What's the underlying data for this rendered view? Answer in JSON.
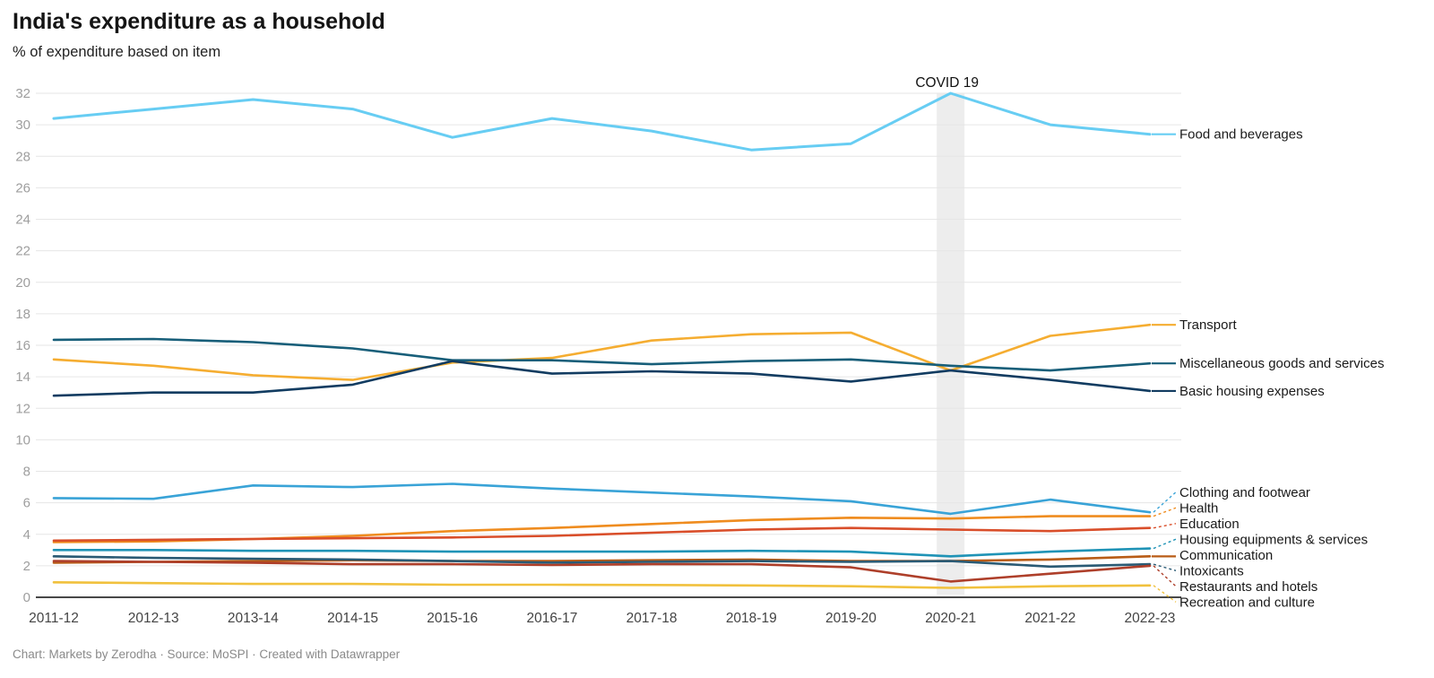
{
  "header": {
    "title": "India's expenditure as a household",
    "subtitle": "% of expenditure based on item"
  },
  "footer": {
    "text": "Chart: Markets by Zerodha · Source: MoSPI · Created with Datawrapper"
  },
  "chart_data": {
    "type": "line",
    "title": "India's expenditure as a household",
    "subtitle": "% of expenditure based on item",
    "x_categories": [
      "2011-12",
      "2012-13",
      "2013-14",
      "2014-15",
      "2015-16",
      "2016-17",
      "2017-18",
      "2018-19",
      "2019-20",
      "2020-21",
      "2021-22",
      "2022-23"
    ],
    "ylim": [
      0,
      32
    ],
    "ytick_step": 2,
    "grid": true,
    "legend_position": "right-direct-labels",
    "annotations": {
      "covid": {
        "label": "COVID 19",
        "x_category": "2020-21"
      }
    },
    "colors": {
      "axis_tick": "#9e9e9e",
      "x_tick": "#444444",
      "gridline": "#e6e6e6",
      "baseline": "#2e2e2e",
      "band": "#ededed",
      "label_text": "#1a1a1a"
    },
    "series": [
      {
        "id": "food",
        "name": "Food and beverages",
        "color": "#67cdf3",
        "values": [
          30.4,
          31.0,
          31.6,
          31.0,
          29.2,
          30.4,
          29.6,
          28.4,
          28.8,
          32.0,
          30.0,
          29.4
        ]
      },
      {
        "id": "transport",
        "name": "Transport",
        "color": "#f5ad31",
        "values": [
          15.1,
          14.7,
          14.1,
          13.8,
          14.9,
          15.2,
          16.3,
          16.7,
          16.8,
          14.4,
          16.6,
          17.3
        ]
      },
      {
        "id": "misc",
        "name": "Miscellaneous goods and services",
        "color": "#175e79",
        "values": [
          16.35,
          16.4,
          16.2,
          15.8,
          15.05,
          15.05,
          14.8,
          15.0,
          15.1,
          14.7,
          14.4,
          14.85
        ]
      },
      {
        "id": "housing",
        "name": "Basic housing expenses",
        "color": "#123c61",
        "values": [
          12.8,
          13.0,
          13.0,
          13.5,
          15.0,
          14.2,
          14.35,
          14.2,
          13.7,
          14.4,
          13.8,
          13.1
        ]
      },
      {
        "id": "clothing",
        "name": "Clothing and footwear",
        "color": "#39a3d7",
        "values": [
          6.3,
          6.25,
          7.1,
          7.0,
          7.2,
          6.9,
          6.65,
          6.4,
          6.1,
          5.3,
          6.2,
          5.4
        ]
      },
      {
        "id": "health",
        "name": "Health",
        "color": "#ef8c1f",
        "values": [
          3.5,
          3.55,
          3.7,
          3.9,
          4.2,
          4.4,
          4.65,
          4.9,
          5.05,
          5.0,
          5.15,
          5.15
        ]
      },
      {
        "id": "education",
        "name": "Education",
        "color": "#d94e2a",
        "values": [
          3.6,
          3.65,
          3.7,
          3.75,
          3.8,
          3.9,
          4.1,
          4.3,
          4.4,
          4.3,
          4.2,
          4.4
        ]
      },
      {
        "id": "housing_eq",
        "name": "Housing equipments & services",
        "color": "#1f93b6",
        "values": [
          3.0,
          3.0,
          2.95,
          2.95,
          2.9,
          2.9,
          2.9,
          2.95,
          2.9,
          2.6,
          2.9,
          3.1
        ]
      },
      {
        "id": "communication",
        "name": "Communication",
        "color": "#b85c16",
        "values": [
          2.2,
          2.25,
          2.3,
          2.35,
          2.3,
          2.3,
          2.35,
          2.4,
          2.3,
          2.3,
          2.4,
          2.6
        ]
      },
      {
        "id": "intoxicants",
        "name": "Intoxicants",
        "color": "#2a5a74",
        "values": [
          2.6,
          2.5,
          2.45,
          2.4,
          2.3,
          2.2,
          2.25,
          2.3,
          2.25,
          2.3,
          1.95,
          2.1
        ]
      },
      {
        "id": "restaurants",
        "name": "Restaurants and hotels",
        "color": "#ae3f2a",
        "values": [
          2.3,
          2.25,
          2.2,
          2.1,
          2.1,
          2.05,
          2.1,
          2.1,
          1.9,
          1.0,
          1.5,
          2.0
        ]
      },
      {
        "id": "recreation",
        "name": "Recreation and culture",
        "color": "#f1c13d",
        "values": [
          0.95,
          0.9,
          0.85,
          0.85,
          0.8,
          0.8,
          0.78,
          0.75,
          0.7,
          0.6,
          0.7,
          0.75
        ]
      }
    ]
  }
}
